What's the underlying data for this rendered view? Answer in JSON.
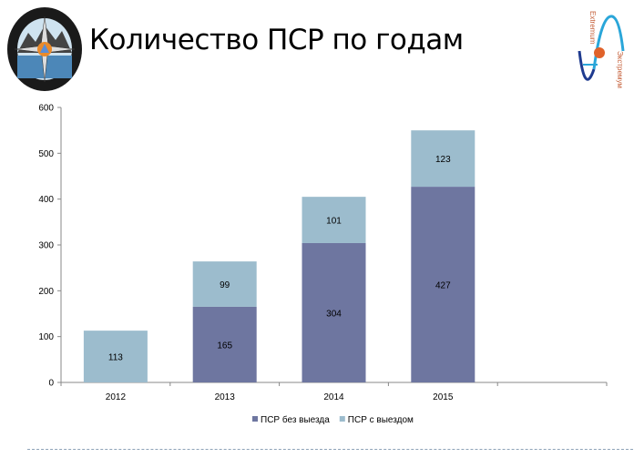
{
  "header": {
    "title": "Количество ПСР по годам",
    "logo_left_text": [
      "ПОИСКОВО-СПАСАТЕЛЬНЫЙ ОТРЯД",
      "ЭКСТРЕМУМ"
    ],
    "logo_right_text": [
      "Extremum",
      "Экстремум"
    ]
  },
  "colors": {
    "series_dark": "#6e76a0",
    "series_light": "#9cbccd",
    "axis": "#888888"
  },
  "chart_data": {
    "type": "bar",
    "stacked": true,
    "title": "",
    "categories": [
      "2012",
      "2013",
      "2014",
      "2015",
      ""
    ],
    "series": [
      {
        "name": "ПСР без выезда",
        "color": "#6e76a0",
        "values": [
          0,
          165,
          304,
          427,
          null
        ]
      },
      {
        "name": "ПСР с выездом",
        "color": "#9cbccd",
        "values": [
          113,
          99,
          101,
          123,
          null
        ]
      }
    ],
    "ylim": [
      0,
      600
    ],
    "yticks": [
      0,
      100,
      200,
      300,
      400,
      500,
      600
    ],
    "grid": false,
    "legend": "bottom",
    "xlabel": "",
    "ylabel": ""
  }
}
